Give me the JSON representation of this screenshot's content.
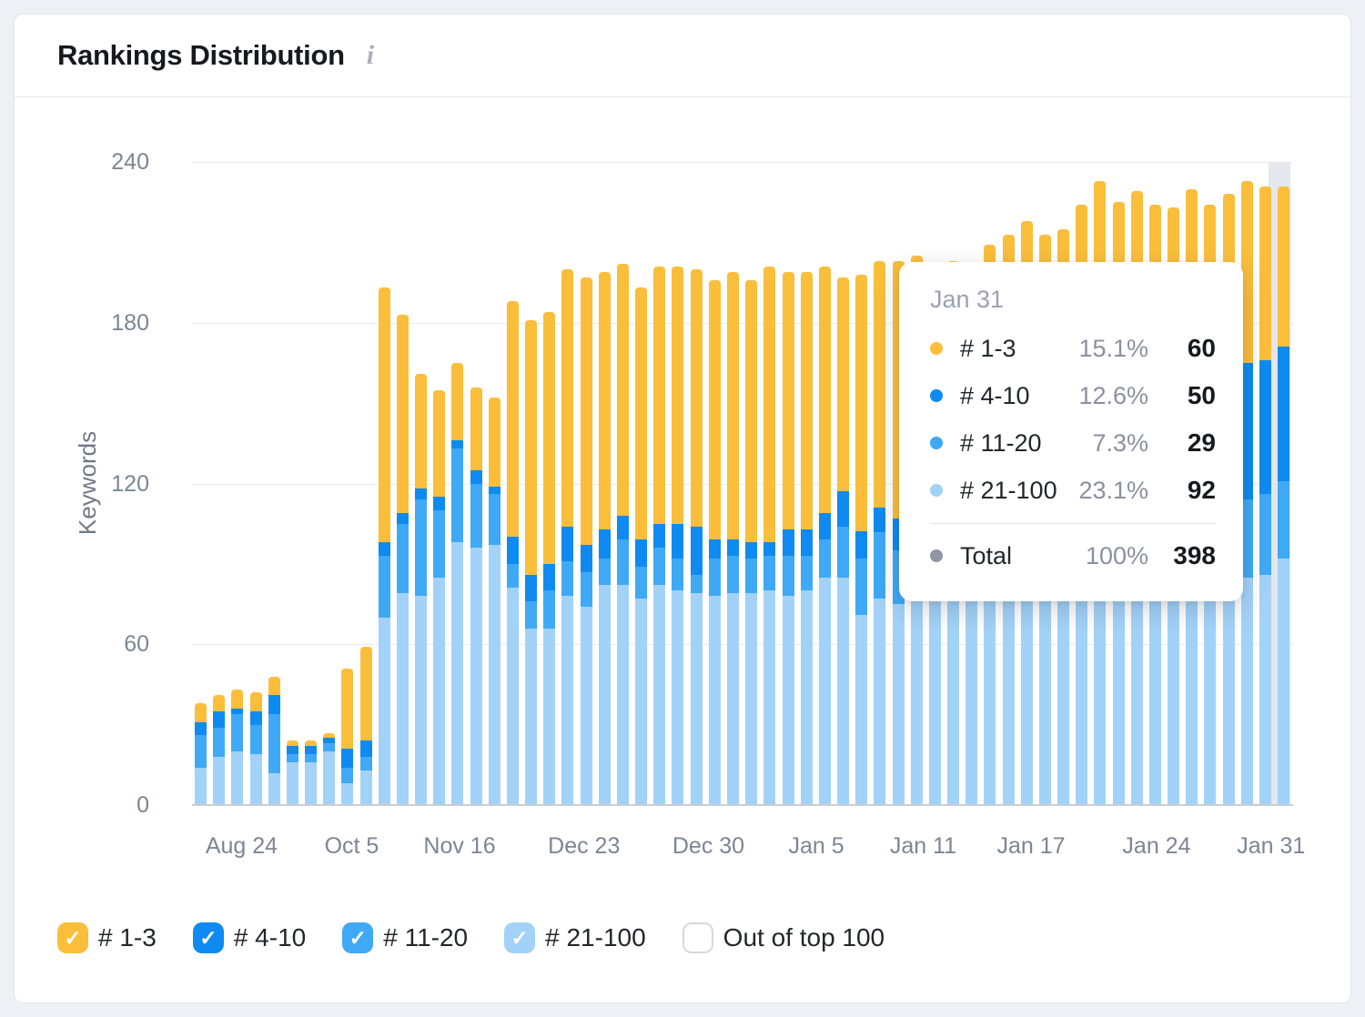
{
  "card": {
    "title": "Rankings Distribution",
    "info_icon": "i"
  },
  "chart": {
    "y_axis": {
      "label": "Keywords"
    },
    "x_axis": {
      "labels": [
        {
          "text": "Aug 24",
          "pct": 4.5
        },
        {
          "text": "Oct 5",
          "pct": 14.5
        },
        {
          "text": "Nov 16",
          "pct": 24.3
        },
        {
          "text": "Dec 23",
          "pct": 35.6
        },
        {
          "text": "Dec 30",
          "pct": 46.9
        },
        {
          "text": "Jan 5",
          "pct": 56.7
        },
        {
          "text": "Jan 11",
          "pct": 66.4
        },
        {
          "text": "Jan 17",
          "pct": 76.2
        },
        {
          "text": "Jan 24",
          "pct": 87.6
        },
        {
          "text": "Jan 31",
          "pct": 98.0
        }
      ]
    }
  },
  "tooltip": {
    "date": "Jan 31",
    "rows": [
      {
        "label": "# 1-3",
        "color": "#FBBE3B",
        "percent": "15.1%",
        "value": "60"
      },
      {
        "label": "# 4-10",
        "color": "#0F8AF0",
        "percent": "12.6%",
        "value": "50"
      },
      {
        "label": "# 11-20",
        "color": "#3FA9F5",
        "percent": "7.3%",
        "value": "29"
      },
      {
        "label": "# 21-100",
        "color": "#A3D2F8",
        "percent": "23.1%",
        "value": "92"
      }
    ],
    "total": {
      "label": "Total",
      "color": "#8E96A3",
      "percent": "100%",
      "value": "398"
    }
  },
  "legend": {
    "items": [
      {
        "label": "# 1-3",
        "color": "#FBBE3B",
        "checked": true
      },
      {
        "label": "# 4-10",
        "color": "#0F8AF0",
        "checked": true
      },
      {
        "label": "# 11-20",
        "color": "#3FA9F5",
        "checked": true
      },
      {
        "label": "# 21-100",
        "color": "#A3D2F8",
        "checked": true
      },
      {
        "label": "Out of top 100",
        "color": null,
        "checked": false
      }
    ]
  },
  "chart_data": {
    "type": "bar",
    "stacked": true,
    "title": "Rankings Distribution",
    "ylabel": "Keywords",
    "ylim": [
      0,
      240
    ],
    "y_ticks": [
      0,
      60,
      120,
      180,
      240
    ],
    "grid": true,
    "highlight_index": 59,
    "x_tick_labels": [
      "Aug 24",
      "Oct 5",
      "Nov 16",
      "Dec 23",
      "Dec 30",
      "Jan 5",
      "Jan 11",
      "Jan 17",
      "Jan 24",
      "Jan 31"
    ],
    "series": [
      {
        "name": "# 21-100",
        "color": "#A3D2F8",
        "values": [
          14,
          18,
          20,
          19,
          12,
          16,
          16,
          20,
          8,
          13,
          70,
          79,
          78,
          85,
          98,
          96,
          97,
          81,
          66,
          66,
          78,
          74,
          82,
          82,
          77,
          82,
          80,
          79,
          78,
          79,
          79,
          80,
          78,
          80,
          85,
          85,
          71,
          77,
          75,
          76,
          76,
          76,
          77,
          77,
          78,
          78,
          79,
          79,
          80,
          81,
          81,
          82,
          82,
          83,
          83,
          84,
          84,
          85,
          86,
          92
        ]
      },
      {
        "name": "# 11-20",
        "color": "#3FA9F5",
        "values": [
          12,
          11,
          14,
          11,
          22,
          3,
          3,
          3,
          6,
          5,
          23,
          26,
          36,
          25,
          35,
          24,
          19,
          9,
          10,
          14,
          13,
          13,
          10,
          17,
          12,
          14,
          12,
          7,
          14,
          14,
          13,
          13,
          15,
          13,
          14,
          19,
          21,
          25,
          20,
          20,
          20,
          21,
          21,
          21,
          22,
          22,
          23,
          23,
          24,
          25,
          25,
          26,
          26,
          27,
          27,
          28,
          28,
          29,
          30,
          29
        ]
      },
      {
        "name": "# 4-10",
        "color": "#0F8AF0",
        "values": [
          5,
          6,
          2,
          5,
          7,
          3,
          3,
          2,
          7,
          6,
          5,
          4,
          4,
          5,
          3,
          5,
          3,
          10,
          10,
          10,
          13,
          10,
          11,
          9,
          10,
          9,
          13,
          18,
          7,
          6,
          6,
          5,
          10,
          10,
          10,
          13,
          10,
          9,
          12,
          13,
          14,
          15,
          16,
          18,
          22,
          26,
          28,
          30,
          34,
          38,
          40,
          42,
          44,
          45,
          47,
          47,
          49,
          51,
          50,
          50
        ]
      },
      {
        "name": "# 1-3",
        "color": "#FBBE3B",
        "values": [
          7,
          6,
          7,
          7,
          7,
          2,
          2,
          2,
          30,
          35,
          95,
          74,
          43,
          40,
          29,
          31,
          33,
          88,
          95,
          94,
          96,
          100,
          96,
          94,
          94,
          96,
          96,
          96,
          97,
          100,
          98,
          103,
          96,
          96,
          92,
          80,
          96,
          92,
          96,
          96,
          90,
          91,
          86,
          93,
          91,
          92,
          83,
          83,
          86,
          89,
          79,
          79,
          72,
          68,
          73,
          65,
          67,
          68,
          65,
          60
        ]
      }
    ],
    "legend_position": "bottom",
    "tooltip_point": {
      "date": "Jan 31",
      "values": {
        "# 1-3": 60,
        "# 4-10": 50,
        "# 11-20": 29,
        "# 21-100": 92,
        "total": 398
      }
    }
  }
}
